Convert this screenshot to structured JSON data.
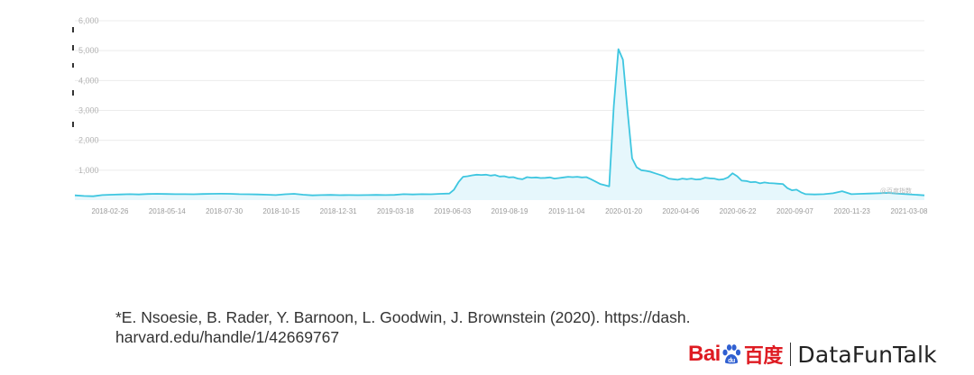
{
  "chart_data": {
    "type": "area",
    "ylim": [
      0,
      6000
    ],
    "yticks": [
      "6,000",
      "5,000",
      "4,000",
      "3,000",
      "2,000",
      "1,000"
    ],
    "xticks": [
      "2018-02-26",
      "2018-05-14",
      "2018-07-30",
      "2018-10-15",
      "2018-12-31",
      "2019-03-18",
      "2019-06-03",
      "2019-08-19",
      "2019-11-04",
      "2020-01-20",
      "2020-04-06",
      "2020-06-22",
      "2020-09-07",
      "2020-11-23",
      "2021-03-08"
    ],
    "series": [
      {
        "values": [
          [
            0,
            160
          ],
          [
            2,
            140
          ],
          [
            4,
            130
          ],
          [
            6,
            170
          ],
          [
            8,
            180
          ],
          [
            10,
            190
          ],
          [
            12,
            200
          ],
          [
            14,
            190
          ],
          [
            16,
            205
          ],
          [
            18,
            210
          ],
          [
            20,
            205
          ],
          [
            22,
            200
          ],
          [
            24,
            200
          ],
          [
            26,
            195
          ],
          [
            28,
            205
          ],
          [
            30,
            210
          ],
          [
            32,
            215
          ],
          [
            34,
            210
          ],
          [
            36,
            200
          ],
          [
            38,
            195
          ],
          [
            40,
            190
          ],
          [
            42,
            180
          ],
          [
            44,
            170
          ],
          [
            46,
            195
          ],
          [
            48,
            210
          ],
          [
            50,
            180
          ],
          [
            52,
            160
          ],
          [
            54,
            170
          ],
          [
            56,
            175
          ],
          [
            58,
            165
          ],
          [
            60,
            170
          ],
          [
            62,
            165
          ],
          [
            64,
            170
          ],
          [
            66,
            175
          ],
          [
            68,
            170
          ],
          [
            70,
            175
          ],
          [
            72,
            200
          ],
          [
            74,
            190
          ],
          [
            76,
            200
          ],
          [
            78,
            195
          ],
          [
            80,
            210
          ],
          [
            82,
            220
          ],
          [
            83,
            350
          ],
          [
            84,
            600
          ],
          [
            85,
            780
          ],
          [
            86,
            800
          ],
          [
            87,
            830
          ],
          [
            88,
            850
          ],
          [
            89,
            840
          ],
          [
            90,
            850
          ],
          [
            91,
            820
          ],
          [
            92,
            840
          ],
          [
            93,
            790
          ],
          [
            94,
            800
          ],
          [
            95,
            760
          ],
          [
            96,
            770
          ],
          [
            97,
            720
          ],
          [
            98,
            700
          ],
          [
            99,
            770
          ],
          [
            100,
            750
          ],
          [
            101,
            760
          ],
          [
            102,
            740
          ],
          [
            103,
            745
          ],
          [
            104,
            760
          ],
          [
            105,
            720
          ],
          [
            106,
            740
          ],
          [
            107,
            760
          ],
          [
            108,
            780
          ],
          [
            109,
            770
          ],
          [
            110,
            780
          ],
          [
            111,
            760
          ],
          [
            112,
            770
          ],
          [
            113,
            700
          ],
          [
            114,
            620
          ],
          [
            115,
            540
          ],
          [
            116,
            500
          ],
          [
            117,
            460
          ],
          [
            118,
            3150
          ],
          [
            119,
            5050
          ],
          [
            120,
            4700
          ],
          [
            121,
            3000
          ],
          [
            122,
            1400
          ],
          [
            123,
            1100
          ],
          [
            124,
            1000
          ],
          [
            125,
            980
          ],
          [
            126,
            950
          ],
          [
            127,
            900
          ],
          [
            128,
            850
          ],
          [
            129,
            800
          ],
          [
            130,
            720
          ],
          [
            131,
            700
          ],
          [
            132,
            680
          ],
          [
            133,
            720
          ],
          [
            134,
            700
          ],
          [
            135,
            720
          ],
          [
            136,
            690
          ],
          [
            137,
            700
          ],
          [
            138,
            750
          ],
          [
            139,
            730
          ],
          [
            140,
            720
          ],
          [
            141,
            680
          ],
          [
            142,
            700
          ],
          [
            143,
            760
          ],
          [
            144,
            900
          ],
          [
            145,
            800
          ],
          [
            146,
            650
          ],
          [
            147,
            640
          ],
          [
            148,
            600
          ],
          [
            149,
            610
          ],
          [
            150,
            560
          ],
          [
            151,
            590
          ],
          [
            152,
            570
          ],
          [
            153,
            560
          ],
          [
            154,
            550
          ],
          [
            155,
            540
          ],
          [
            156,
            400
          ],
          [
            157,
            330
          ],
          [
            158,
            350
          ],
          [
            159,
            260
          ],
          [
            160,
            200
          ],
          [
            162,
            190
          ],
          [
            164,
            200
          ],
          [
            166,
            230
          ],
          [
            168,
            300
          ],
          [
            170,
            200
          ],
          [
            172,
            210
          ],
          [
            174,
            220
          ],
          [
            176,
            230
          ],
          [
            178,
            240
          ],
          [
            180,
            220
          ],
          [
            182,
            200
          ],
          [
            184,
            180
          ],
          [
            186,
            160
          ]
        ]
      }
    ],
    "watermark": "@百度指数",
    "colors": {
      "line": "#3ec6e0",
      "fill": "#e6f7fc",
      "grid": "#ececec"
    }
  },
  "citation": {
    "line1": "*E. Nsoesie, B. Rader, Y. Barnoon, L. Goodwin, J. Brownstein (2020). https://dash.",
    "line2": "harvard.edu/handle/1/42669767"
  },
  "logo": {
    "baidu_left": "Bai",
    "baidu_right": "百度",
    "brand": "DataFunTalk",
    "paw_icon": "baidu-paw-icon"
  }
}
